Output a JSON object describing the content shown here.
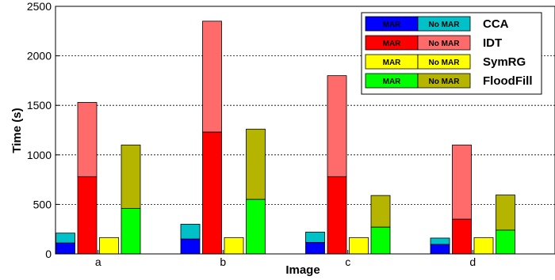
{
  "chart_data": {
    "type": "bar",
    "stacked": true,
    "xlabel": "Image",
    "ylabel": "Time (s)",
    "ylim": [
      0,
      2500
    ],
    "yticks": [
      0,
      500,
      1000,
      1500,
      2000,
      2500
    ],
    "grid": "horizontal dashed",
    "legend_position": "top-right",
    "categories": [
      "a",
      "b",
      "c",
      "d"
    ],
    "stack_labels": [
      "MAR",
      "No MAR"
    ],
    "series": [
      {
        "name": "CCA",
        "mar": [
          110,
          150,
          115,
          95
        ],
        "total": [
          210,
          300,
          220,
          160
        ],
        "colors": {
          "mar": "#0000ff",
          "no_mar": "#00c0c8"
        }
      },
      {
        "name": "IDT",
        "mar": [
          780,
          1230,
          780,
          350
        ],
        "total": [
          1530,
          2350,
          1800,
          1100
        ],
        "colors": {
          "mar": "#ff0000",
          "no_mar": "#ff6b6b"
        }
      },
      {
        "name": "SymRG",
        "mar": [
          165,
          165,
          165,
          165
        ],
        "total": [
          165,
          165,
          165,
          165
        ],
        "colors": {
          "mar": "#ffff00",
          "no_mar": "#ffff00"
        }
      },
      {
        "name": "FloodFill",
        "mar": [
          460,
          550,
          270,
          240
        ],
        "total": [
          1100,
          1260,
          590,
          595
        ],
        "colors": {
          "mar": "#00ff00",
          "no_mar": "#b5b500"
        }
      }
    ]
  }
}
